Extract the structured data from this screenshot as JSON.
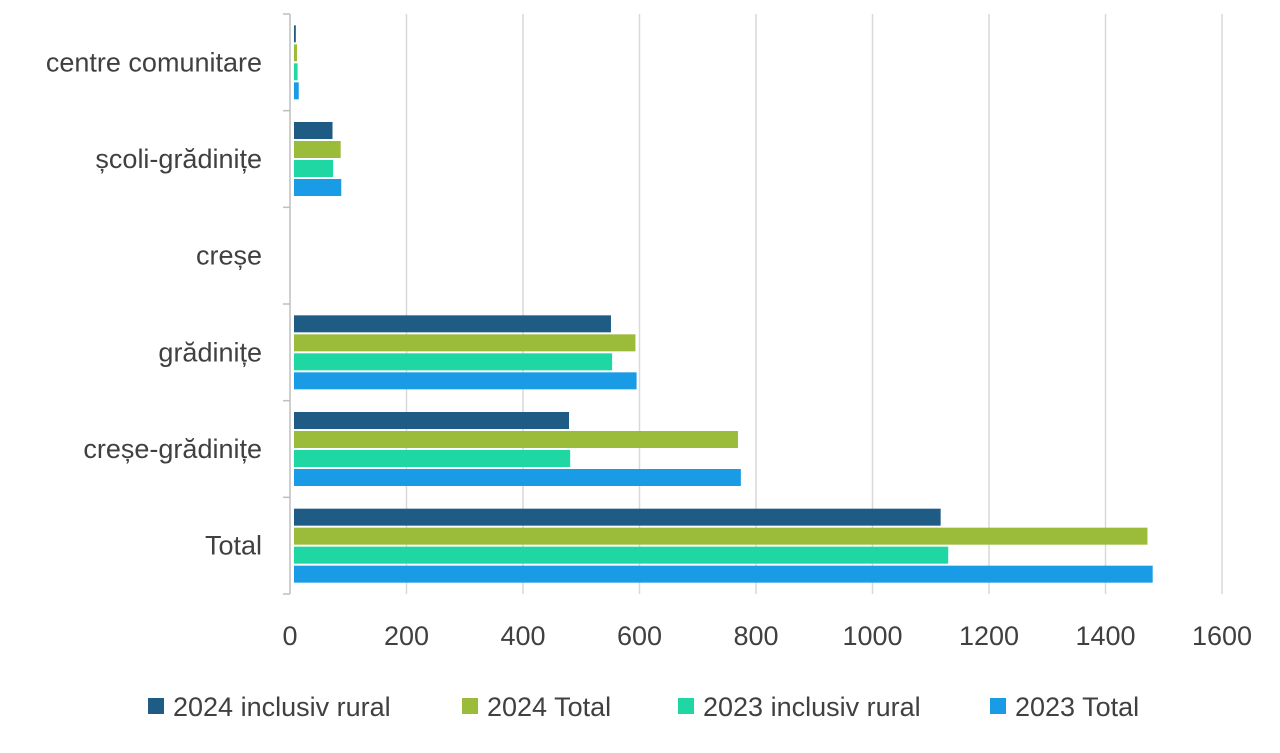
{
  "chart_data": {
    "type": "bar",
    "orientation": "horizontal",
    "categories": [
      "Total",
      "creșe-grădinițe",
      "grădinițe",
      "creșe",
      "școli-grădinițe",
      "centre comunitare"
    ],
    "series": [
      {
        "name": "2024 inclusiv rural",
        "color": "#1f5c85",
        "values": [
          1117,
          479,
          551,
          0,
          73,
          10
        ]
      },
      {
        "name": "2024 Total",
        "color": "#9bbb3b",
        "values": [
          1472,
          769,
          593,
          0,
          87,
          12
        ]
      },
      {
        "name": "2023 inclusiv rural",
        "color": "#1ed7a3",
        "values": [
          1130,
          481,
          553,
          0,
          74,
          13
        ]
      },
      {
        "name": "2023 Total",
        "color": "#1a9be6",
        "values": [
          1481,
          774,
          595,
          0,
          88,
          15
        ]
      }
    ],
    "xlim": [
      0,
      1600
    ],
    "xticks": [
      0,
      200,
      400,
      600,
      800,
      1000,
      1200,
      1400,
      1600
    ],
    "xlabel": "",
    "ylabel": "",
    "grid": "vertical",
    "legend": "bottom"
  }
}
